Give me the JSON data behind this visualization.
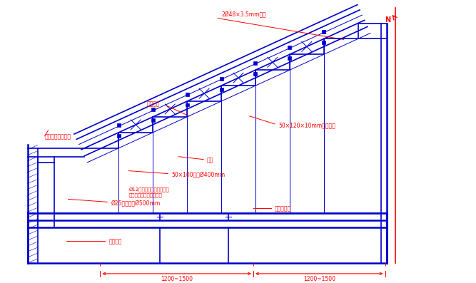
{
  "bg_color": "#ffffff",
  "blue": "#0000cc",
  "red": "#ff0000",
  "fig_width": 6.67,
  "fig_height": 3.97,
  "dpi": 100,
  "labels": {
    "pipe_top": "2Ø48×3.5mm钉管",
    "mold_board": "七层模板",
    "stair_form": "阐模面（或平台）",
    "wood_purlin": "50×100木方Ø400mm",
    "steel_nail_1": "Ø12对拉树桩，间隔一步，",
    "steel_nail_2": "纺向设一道，横向设两道",
    "steel_foot": "Ø25圆钉锁头Ø500mm",
    "bracket": "樬栉",
    "horiz_pipe": "钉管水平杵",
    "vert_pipe": "鑉管立杵",
    "steel_plate": "50×120×10mm钉板夹片",
    "dim1": "1200~1500",
    "dim2": "1200~1500"
  }
}
